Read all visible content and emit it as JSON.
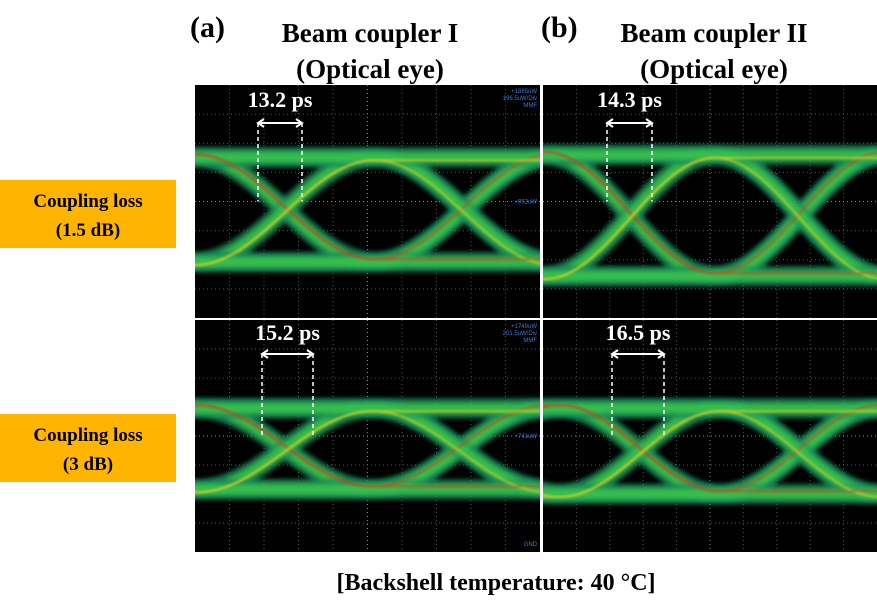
{
  "columns": [
    {
      "label": "(a)",
      "title": "Beam coupler I",
      "subtitle": "(Optical eye)"
    },
    {
      "label": "(b)",
      "title": "Beam coupler II",
      "subtitle": "(Optical eye)"
    }
  ],
  "rows": [
    {
      "label": "Coupling loss",
      "value": "(1.5 dB)"
    },
    {
      "label": "Coupling loss",
      "value": "(3 dB)"
    }
  ],
  "eyes": [
    {
      "width": "13.2 ps",
      "scope": [
        "+1885uW",
        "196.5uW/Div",
        "MMF",
        "+952uW"
      ]
    },
    {
      "width": "14.3 ps"
    },
    {
      "width": "15.2 ps",
      "scope": [
        "+1749uW",
        "201.5uW/Div",
        "MMF",
        "+741uW",
        "GND"
      ]
    },
    {
      "width": "16.5 ps"
    }
  ],
  "footer": "[Backshell temperature: 40 °C]"
}
